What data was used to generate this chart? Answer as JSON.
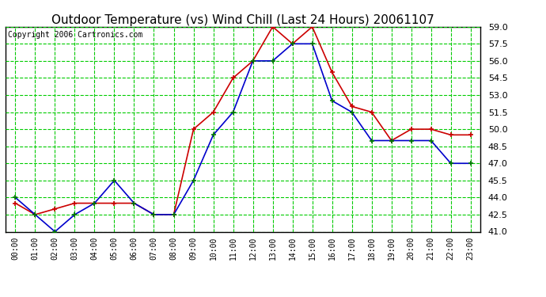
{
  "title": "Outdoor Temperature (vs) Wind Chill (Last 24 Hours) 20061107",
  "copyright": "Copyright 2006 Cartronics.com",
  "hours": [
    "00:00",
    "01:00",
    "02:00",
    "03:00",
    "04:00",
    "05:00",
    "06:00",
    "07:00",
    "08:00",
    "09:00",
    "10:00",
    "11:00",
    "12:00",
    "13:00",
    "14:00",
    "15:00",
    "16:00",
    "17:00",
    "18:00",
    "19:00",
    "20:00",
    "21:00",
    "22:00",
    "23:00"
  ],
  "outdoor_temp": [
    43.5,
    42.5,
    43.0,
    43.5,
    43.5,
    43.5,
    43.5,
    42.5,
    42.5,
    50.0,
    51.5,
    54.5,
    56.0,
    59.0,
    57.5,
    59.0,
    55.0,
    52.0,
    51.5,
    49.0,
    50.0,
    50.0,
    49.5,
    49.5
  ],
  "wind_chill": [
    44.0,
    42.5,
    41.0,
    42.5,
    43.5,
    45.5,
    43.5,
    42.5,
    42.5,
    45.5,
    49.5,
    51.5,
    56.0,
    56.0,
    57.5,
    57.5,
    52.5,
    51.5,
    49.0,
    49.0,
    49.0,
    49.0,
    47.0,
    47.0
  ],
  "temp_color": "#cc0000",
  "windchill_color": "#0000cc",
  "marker_color_temp": "#cc0000",
  "marker_color_wc": "#007700",
  "ylim": [
    41.0,
    59.0
  ],
  "yticks": [
    41.0,
    42.5,
    44.0,
    45.5,
    47.0,
    48.5,
    50.0,
    51.5,
    53.0,
    54.5,
    56.0,
    57.5,
    59.0
  ],
  "bg_color": "#ffffff",
  "plot_bg_color": "#ffffff",
  "grid_color": "#00cc00",
  "vgrid_color": "#888888",
  "title_fontsize": 11,
  "copyright_fontsize": 7
}
